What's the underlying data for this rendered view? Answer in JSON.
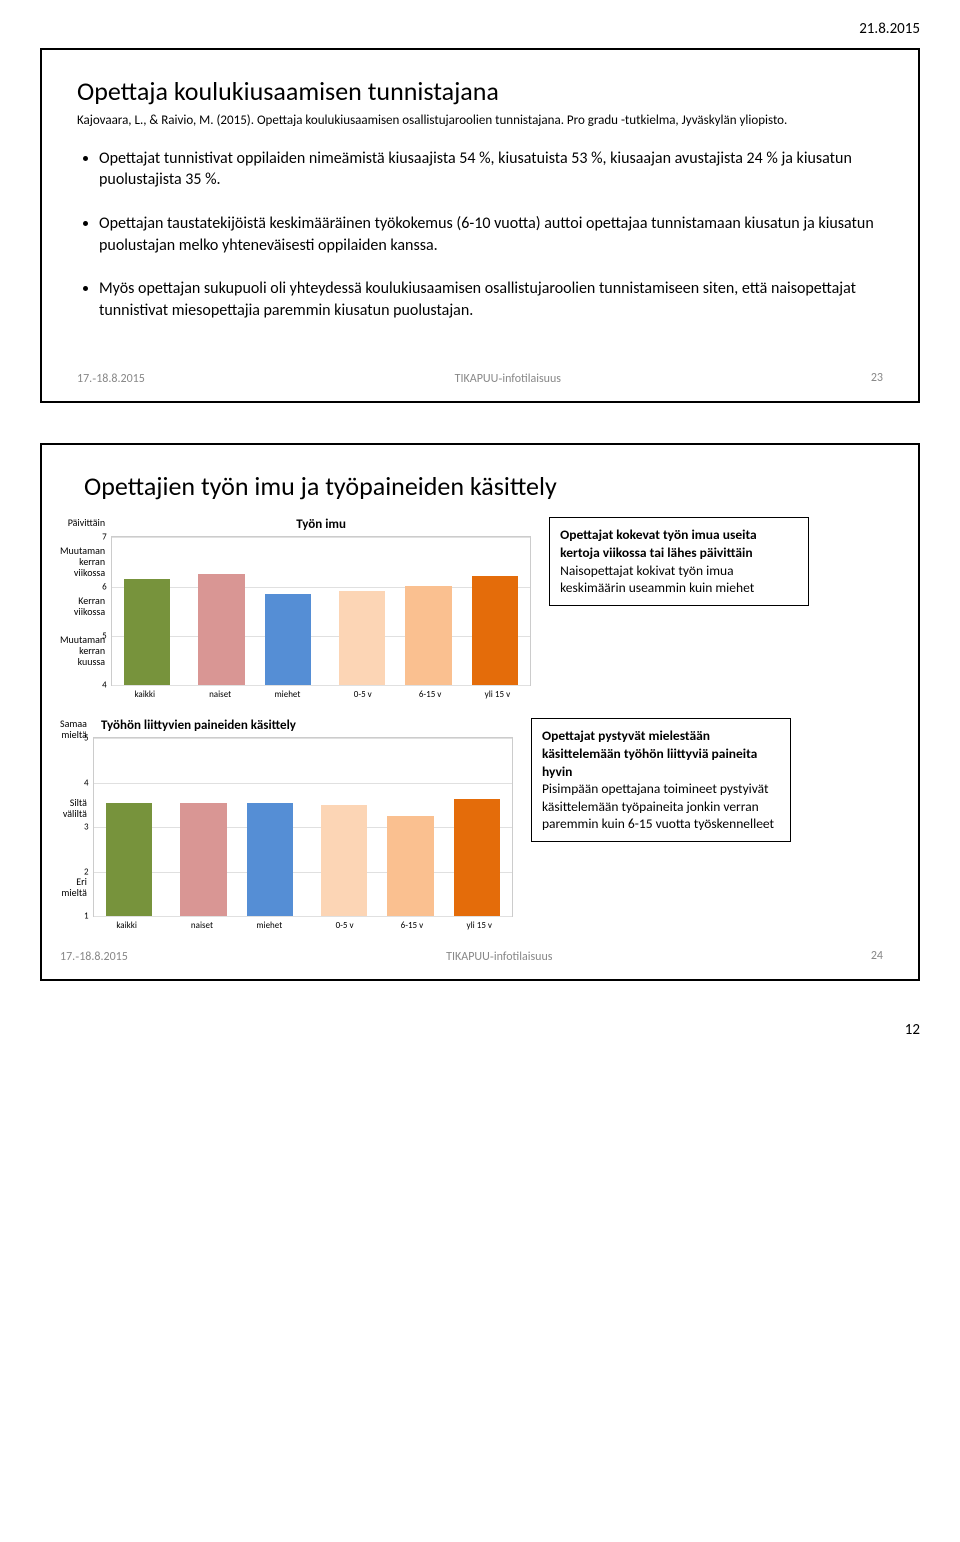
{
  "page_header_date": "21.8.2015",
  "page_number": "12",
  "slide1": {
    "title": "Opettaja koulukiusaamisen tunnistajana",
    "citation": "Kajovaara, L., & Raivio, M. (2015). Opettaja koulukiusaamisen osallistujaroolien tunnistajana. Pro gradu -tutkielma, Jyväskylän yliopisto.",
    "bullets": [
      "Opettajat tunnistivat oppilaiden nimeämistä kiusaajista 54 %, kiusatuista 53 %, kiusaajan avustajista 24 % ja kiusatun puolustajista 35 %.",
      "Opettajan taustatekijöistä keskimääräinen työkokemus (6-10 vuotta) auttoi opettajaa tunnistamaan kiusatun ja kiusatun puolustajan melko yhteneväisesti oppilaiden kanssa.",
      "Myös opettajan sukupuoli oli yhteydessä koulukiusaamisen osallistujaroolien tunnistamiseen siten, että naisopettajat tunnistivat miesopettajia paremmin kiusatun puolustajan."
    ],
    "footer_date": "17.‐18.8.2015",
    "footer_center": "TIKAPUU‐infotilaisuus",
    "footer_num": "23"
  },
  "slide2": {
    "title": "Opettajien työn imu ja työpaineiden käsittely",
    "chart1": {
      "title": "Työn imu",
      "ylabels": [
        "Päivittäin",
        "Muutaman kerran viikossa",
        "Kerran viikossa",
        "Muutaman kerran kuussa"
      ],
      "yticks": [
        7,
        6,
        5,
        4
      ],
      "ymin": 4,
      "ymax": 7,
      "categories": [
        "kaikki",
        "",
        "naiset",
        "miehet",
        "",
        "0-5 v",
        "6-15 v",
        "yli 15 v"
      ],
      "values": [
        6.15,
        null,
        6.25,
        5.85,
        null,
        5.92,
        6.02,
        6.22
      ],
      "colors": [
        "#77933c",
        null,
        "#d99694",
        "#558ed5",
        null,
        "#fcd5b5",
        "#fac090",
        "#e46c0a"
      ]
    },
    "chart2": {
      "title": "Työhön liittyvien paineiden käsittely",
      "ylabels": [
        "Samaa mieltä",
        "",
        "Siltä väliltä",
        "",
        "Eri mieltä"
      ],
      "yticks": [
        5,
        4,
        3,
        2,
        1
      ],
      "ymin": 1,
      "ymax": 5,
      "categories": [
        "kaikki",
        "",
        "naiset",
        "miehet",
        "",
        "0-5 v",
        "6-15 v",
        "yli 15 v"
      ],
      "values": [
        3.55,
        null,
        3.55,
        3.55,
        null,
        3.5,
        3.25,
        3.65
      ],
      "colors": [
        "#77933c",
        null,
        "#d99694",
        "#558ed5",
        null,
        "#fcd5b5",
        "#fac090",
        "#e46c0a"
      ]
    },
    "textbox1": {
      "bold": "Opettajat kokevat työn imua useita kertoja viikossa tai lähes päivittäin",
      "rest": "Naisopettajat kokivat työn imua keskimäärin useammin kuin miehet"
    },
    "textbox2": {
      "bold": "Opettajat pystyvät mielestään käsittelemään työhön liittyviä paineita hyvin",
      "rest": "Pisimpään opettajana toimineet pystyivät käsittelemään työpaineita jonkin verran paremmin kuin 6-15 vuotta työskennelleet"
    },
    "footer_date": "17.‐18.8.2015",
    "footer_center": "TIKAPUU‐infotilaisuus",
    "footer_num": "24"
  }
}
